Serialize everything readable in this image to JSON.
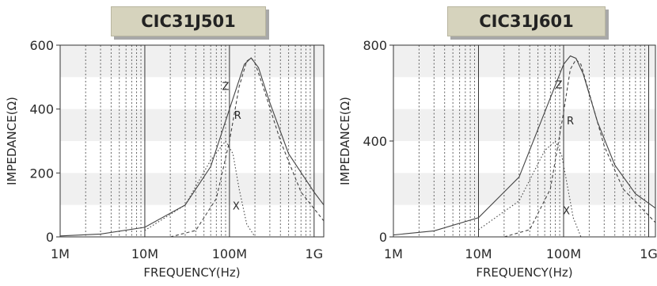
{
  "chart_data": [
    {
      "type": "line",
      "title": "CIC31J501",
      "xlabel": "FREQUENCY(Hz)",
      "ylabel": "IMPEDANCE(Ω)",
      "xscale": "log",
      "xlim": [
        "1M",
        "1.3G"
      ],
      "x_tick_labels": [
        "1M",
        "10M",
        "100M",
        "1G"
      ],
      "ylim": [
        0,
        600
      ],
      "y_tick_values": [
        0,
        200,
        400,
        600
      ],
      "y_tick_labels": [
        "0",
        "200",
        "400",
        "600"
      ],
      "x_unit_values_hz": [
        1000000,
        10000000,
        100000000,
        1000000000
      ],
      "series": [
        {
          "name": "Z",
          "style": "solid",
          "x_hz": [
            1000000,
            3000000,
            10000000,
            30000000,
            60000000,
            100000000,
            150000000,
            180000000,
            220000000,
            300000000,
            500000000,
            1000000000,
            1300000000
          ],
          "values": [
            3,
            9,
            30,
            100,
            220,
            400,
            540,
            560,
            530,
            420,
            260,
            140,
            100
          ]
        },
        {
          "name": "R",
          "style": "dashed",
          "x_hz": [
            20000000,
            40000000,
            70000000,
            100000000,
            130000000,
            160000000,
            180000000,
            200000000,
            250000000,
            400000000,
            700000000,
            1300000000
          ],
          "values": [
            0,
            20,
            120,
            300,
            470,
            550,
            560,
            545,
            470,
            300,
            140,
            50
          ]
        },
        {
          "name": "X",
          "style": "dotted",
          "x_hz": [
            10000000,
            30000000,
            60000000,
            90000000,
            110000000,
            130000000,
            160000000,
            200000000
          ],
          "values": [
            20,
            100,
            240,
            300,
            260,
            150,
            40,
            0
          ]
        }
      ],
      "curve_labels": [
        {
          "text": "Z",
          "x_hz": 90000000,
          "y": 460
        },
        {
          "text": "R",
          "x_hz": 125000000,
          "y": 370
        },
        {
          "text": "X",
          "x_hz": 120000000,
          "y": 85
        }
      ]
    },
    {
      "type": "line",
      "title": "CIC31J601",
      "xlabel": "FREQUENCY(Hz)",
      "ylabel": "IMPEDANCE(Ω)",
      "xscale": "log",
      "xlim": [
        "1M",
        "1.2G"
      ],
      "x_tick_labels": [
        "1M",
        "10M",
        "100M",
        "1G"
      ],
      "ylim": [
        0,
        800
      ],
      "y_tick_values": [
        0,
        400,
        800
      ],
      "y_tick_labels": [
        "0",
        "400",
        "800"
      ],
      "x_unit_values_hz": [
        1000000,
        10000000,
        100000000,
        1000000000
      ],
      "series": [
        {
          "name": "Z",
          "style": "solid",
          "x_hz": [
            1000000,
            3000000,
            10000000,
            30000000,
            60000000,
            100000000,
            120000000,
            140000000,
            170000000,
            250000000,
            400000000,
            700000000,
            1200000000
          ],
          "values": [
            8,
            25,
            80,
            250,
            520,
            720,
            755,
            745,
            680,
            480,
            300,
            180,
            120
          ]
        },
        {
          "name": "R",
          "style": "dashed",
          "x_hz": [
            20000000,
            40000000,
            70000000,
            100000000,
            120000000,
            140000000,
            160000000,
            200000000,
            300000000,
            500000000,
            1200000000
          ],
          "values": [
            0,
            30,
            200,
            520,
            700,
            740,
            720,
            600,
            380,
            200,
            60
          ]
        },
        {
          "name": "X",
          "style": "dotted",
          "x_hz": [
            10000000,
            30000000,
            60000000,
            80000000,
            95000000,
            110000000,
            130000000,
            160000000
          ],
          "values": [
            30,
            150,
            360,
            400,
            340,
            220,
            80,
            0
          ]
        }
      ],
      "curve_labels": [
        {
          "text": "Z",
          "x_hz": 88000000,
          "y": 620
        },
        {
          "text": "R",
          "x_hz": 120000000,
          "y": 470
        },
        {
          "text": "X",
          "x_hz": 108000000,
          "y": 95
        }
      ]
    }
  ]
}
